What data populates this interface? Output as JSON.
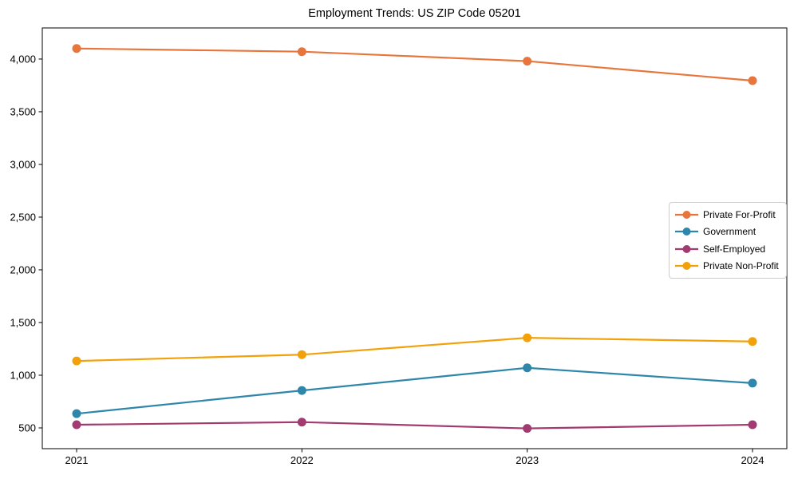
{
  "page": {
    "background": "#ffffff",
    "text_color": "#000000",
    "axis_color": "#000000",
    "legend_border_color": "#cccccc"
  },
  "chart_data": {
    "type": "line",
    "title": "Employment Trends: US ZIP Code 05201",
    "x": [
      "2021",
      "2022",
      "2023",
      "2024"
    ],
    "series": [
      {
        "name": "Private For-Profit",
        "color": "#E8763C",
        "values": [
          4100,
          4070,
          3980,
          3795
        ]
      },
      {
        "name": "Government",
        "color": "#2E86AB",
        "values": [
          635,
          855,
          1070,
          925
        ]
      },
      {
        "name": "Self-Employed",
        "color": "#A23B72",
        "values": [
          530,
          555,
          495,
          530
        ]
      },
      {
        "name": "Private Non-Profit",
        "color": "#F2A10A",
        "values": [
          1135,
          1195,
          1355,
          1320
        ]
      }
    ],
    "xlabel": "",
    "ylabel": "",
    "yticks": [
      500,
      1000,
      1500,
      2000,
      2500,
      3000,
      3500,
      4000
    ],
    "ytick_labels": [
      "500",
      "1,000",
      "1,500",
      "2,000",
      "2,500",
      "3,000",
      "3,500",
      "4,000"
    ],
    "ylim": [
      303,
      4295
    ],
    "grid": false,
    "legend_position": "center right",
    "marker": "circle",
    "line_width": 2.2,
    "marker_radius": 5.5
  }
}
